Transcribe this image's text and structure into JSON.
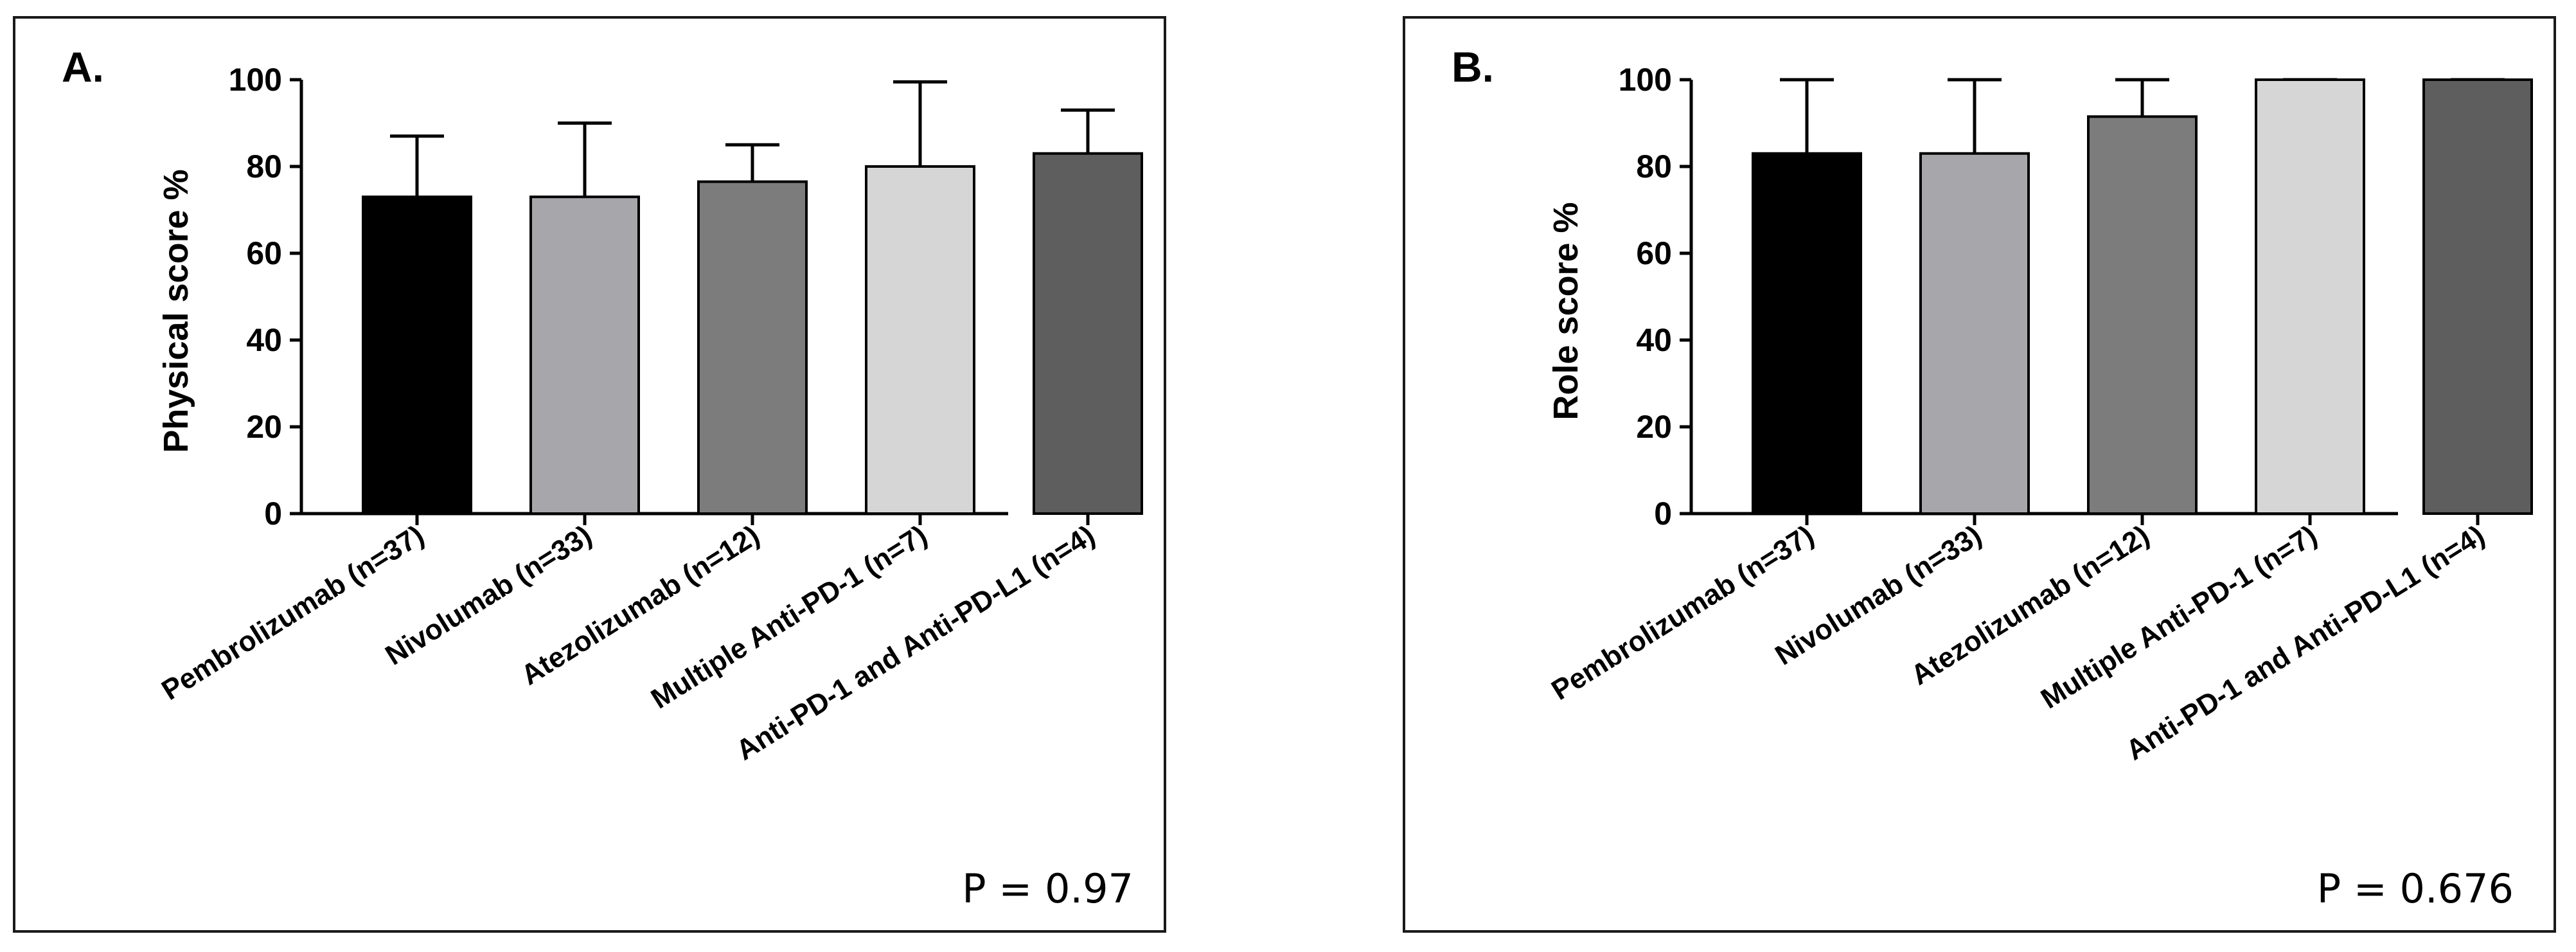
{
  "chart_data": [
    {
      "type": "bar",
      "panel": "A.",
      "title": "",
      "xlabel": "",
      "ylabel": "Physical score %",
      "ylim": [
        0,
        100
      ],
      "yticks": [
        0,
        20,
        40,
        60,
        80,
        100
      ],
      "categories": [
        "Pembrolizumab (n=37)",
        "Nivolumab (n=33)",
        "Atezolizumab (n=12)",
        "Multiple Anti-PD-1 (n=7)",
        "Anti-PD-1 and Anti-PD-L1 (n=4)"
      ],
      "values": [
        73,
        73,
        76.5,
        80,
        83
      ],
      "error_upper": [
        87,
        90,
        85,
        99.5,
        93
      ],
      "colors": [
        "#000000",
        "#a7a6aa",
        "#7c7c7c",
        "#d6d6d6",
        "#5e5e5e"
      ],
      "annotation": "P = 0.97"
    },
    {
      "type": "bar",
      "panel": "B.",
      "title": "",
      "xlabel": "",
      "ylabel": "Role score %",
      "ylim": [
        0,
        100
      ],
      "yticks": [
        0,
        20,
        40,
        60,
        80,
        100
      ],
      "categories": [
        "Pembrolizumab (n=37)",
        "Nivolumab (n=33)",
        "Atezolizumab (n=12)",
        "Multiple Anti-PD-1 (n=7)",
        "Anti-PD-1 and Anti-PD-L1 (n=4)"
      ],
      "values": [
        83,
        83,
        91.5,
        100,
        100
      ],
      "error_upper": [
        100,
        100,
        100,
        100,
        100
      ],
      "colors": [
        "#000000",
        "#a7a6aa",
        "#7c7c7c",
        "#d6d6d6",
        "#5e5e5e"
      ],
      "annotation": "P = 0.676"
    }
  ]
}
